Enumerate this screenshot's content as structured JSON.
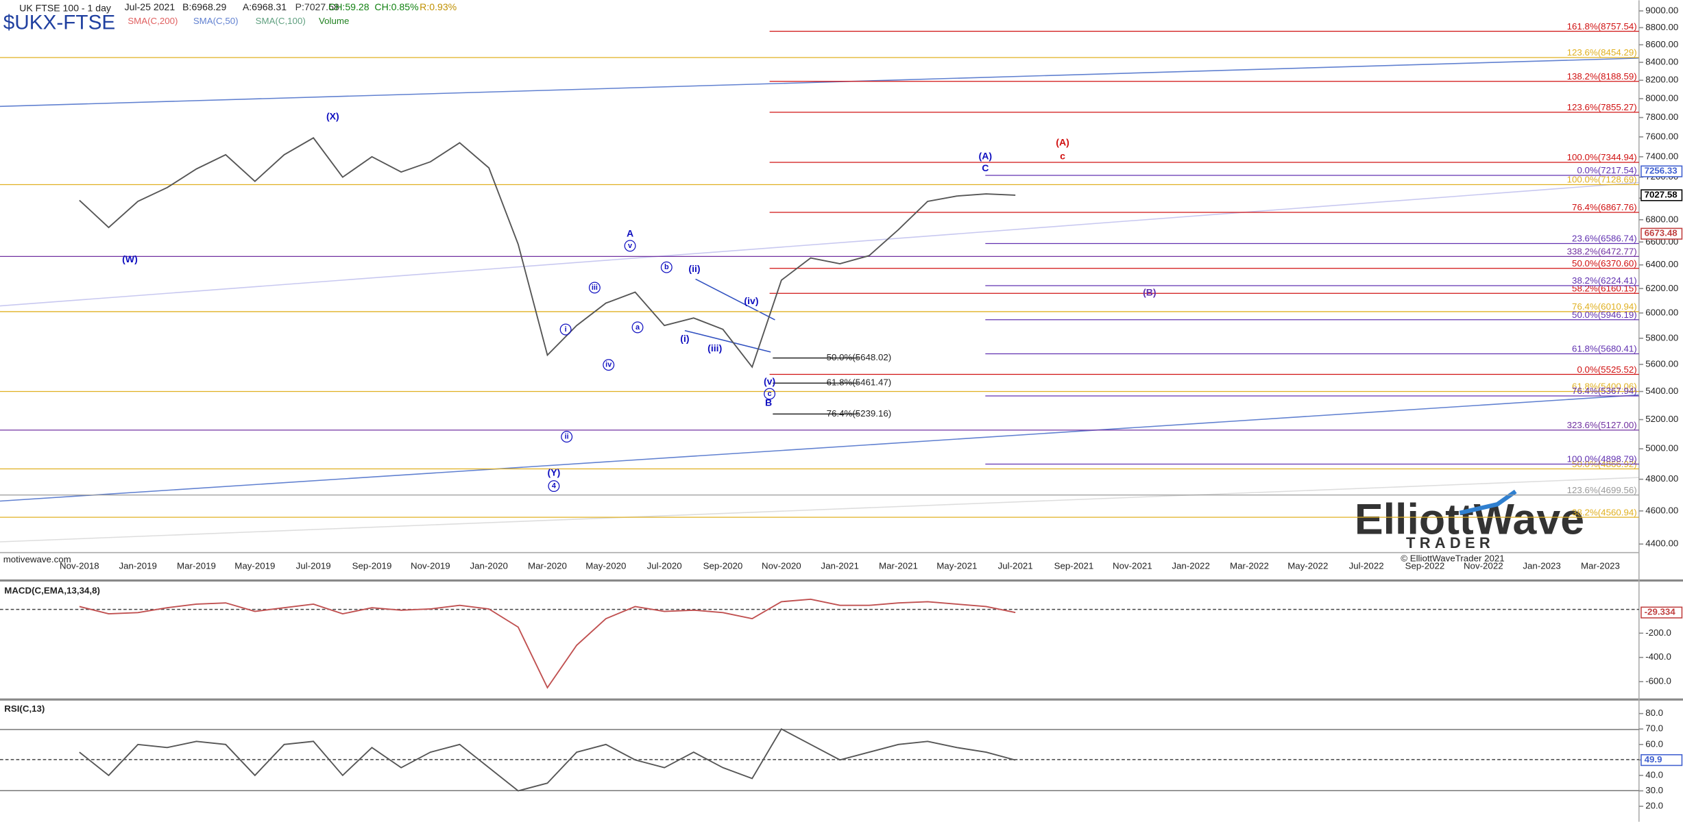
{
  "header": {
    "symbol_name": "UK FTSE 100 - 1 day",
    "date": "Jul-25 2021",
    "bid": "B:6968.29",
    "ask": "A:6968.31",
    "price": "P:7027.58",
    "change": "CH:59.28",
    "change_pct": "CH:0.85%",
    "range": "R:0.93%",
    "ticker": "$UKX-FTSE",
    "studies": [
      "SMA(C,200)",
      "SMA(C,50)",
      "SMA(C,100)",
      "Volume"
    ]
  },
  "footer": {
    "source": "motivewave.com",
    "copyright": "© ElliottWaveTrader 2021",
    "logo_top": "ElliottWave",
    "logo_bottom": "TRADER"
  },
  "chart_data": [
    {
      "type": "line",
      "log_scale": true,
      "categories": [
        "Nov-2018",
        null,
        "Jan-2019",
        null,
        "Mar-2019",
        null,
        "May-2019",
        null,
        "Jul-2019",
        null,
        "Sep-2019",
        null,
        "Nov-2019",
        null,
        "Jan-2020",
        null,
        "Mar-2020",
        null,
        "May-2020",
        null,
        "Jul-2020",
        null,
        "Sep-2020",
        null,
        "Nov-2020",
        null,
        "Jan-2021",
        null,
        "Mar-2021",
        null,
        "May-2021",
        null,
        "Jul-2021",
        null,
        "Sep-2021",
        null,
        "Nov-2021",
        null,
        "Jan-2022",
        null,
        "Mar-2022",
        null,
        "May-2022",
        null,
        "Jul-2022",
        null,
        "Sep-2022",
        null,
        "Nov-2022",
        null,
        "Jan-2023",
        null,
        "Mar-2023"
      ],
      "series": [
        {
          "color": "#555555",
          "values": [
            6980,
            6730,
            6970,
            7100,
            7280,
            7420,
            7160,
            7420,
            7590,
            7200,
            7400,
            7250,
            7350,
            7540,
            7290,
            6580,
            5670,
            5900,
            6080,
            6170,
            5900,
            5960,
            5870,
            5580,
            6270,
            6460,
            6410,
            6480,
            6710,
            6970,
            7020,
            7040,
            7027.58,
            null,
            null,
            null,
            null,
            null,
            null,
            null,
            null,
            null,
            null,
            null,
            null,
            null,
            null,
            null,
            null,
            null,
            null,
            null,
            null
          ]
        }
      ],
      "ylim": [
        4350,
        9130
      ],
      "yticks": [
        {
          "value": 4400,
          "label": "4400.00"
        },
        {
          "value": 4600,
          "label": "4600.00"
        },
        {
          "value": 4800,
          "label": "4800.00"
        },
        {
          "value": 5000,
          "label": "5000.00"
        },
        {
          "value": 5200,
          "label": "5200.00"
        },
        {
          "value": 5400,
          "label": "5400.00"
        },
        {
          "value": 5600,
          "label": "5600.00"
        },
        {
          "value": 5800,
          "label": "5800.00"
        },
        {
          "value": 6000,
          "label": "6000.00"
        },
        {
          "value": 6200,
          "label": "6200.00"
        },
        {
          "value": 6400,
          "label": "6400.00"
        },
        {
          "value": 6600,
          "label": "6600.00"
        },
        {
          "value": 6800,
          "label": "6800.00"
        },
        {
          "value": 7000,
          "label": "7000.00"
        },
        {
          "value": 7200,
          "label": "7200.00"
        },
        {
          "value": 7400,
          "label": "7400.00"
        },
        {
          "value": 7600,
          "label": "7600.00"
        },
        {
          "value": 7800,
          "label": "7800.00"
        },
        {
          "value": 8000,
          "label": "8000.00"
        },
        {
          "value": 8200,
          "label": "8200.00"
        },
        {
          "value": 8400,
          "label": "8400.00"
        },
        {
          "value": 8600,
          "label": "8600.00"
        },
        {
          "value": 8800,
          "label": "8800.00"
        },
        {
          "value": 9000,
          "label": "9000.00"
        }
      ],
      "fib_sets": [
        {
          "color": "#e0b020",
          "levels": [
            {
              "value": 8454.29,
              "label": "123.6%(8454.29)"
            },
            {
              "value": 7128.69,
              "label": "100.0%(7128.69)"
            },
            {
              "value": 6010.94,
              "label": "76.4%(6010.94)"
            },
            {
              "value": 5400.06,
              "label": "61.8%(5400.06)"
            },
            {
              "value": 4866.92,
              "label": "50.0%(4866.92)"
            },
            {
              "value": 4560.94,
              "label": "38.2%(4560.94)"
            }
          ]
        },
        {
          "color": "#7030a0",
          "levels": [
            {
              "value": 6472.77,
              "label": "338.2%(6472.77)"
            },
            {
              "value": 5127.0,
              "label": "323.6%(5127.00)"
            }
          ]
        },
        {
          "color": "#999999",
          "levels": [
            {
              "value": 4699.56,
              "label": "123.6%(4699.56)"
            }
          ]
        },
        {
          "color": "#d01010",
          "levels": [
            {
              "value": 8757.54,
              "label": "161.8%(8757.54)"
            },
            {
              "value": 8188.59,
              "label": "138.2%(8188.59)"
            },
            {
              "value": 7855.27,
              "label": "123.6%(7855.27)"
            },
            {
              "value": 7344.94,
              "label": "100.0%(7344.94)"
            },
            {
              "value": 6867.76,
              "label": "76.4%(6867.76)"
            },
            {
              "value": 6370.6,
              "label": "50.0%(6370.60)"
            },
            {
              "value": 6160.15,
              "label": "58.2%(6160.15)"
            },
            {
              "value": 5525.52,
              "label": "0.0%(5525.52)"
            }
          ]
        },
        {
          "color": "#6030b0",
          "levels": [
            {
              "value": 7217.54,
              "label": "0.0%(7217.54)"
            },
            {
              "value": 6586.74,
              "label": "23.6%(6586.74)"
            },
            {
              "value": 6224.41,
              "label": "38.2%(6224.41)"
            },
            {
              "value": 5946.19,
              "label": "50.0%(5946.19)"
            },
            {
              "value": 5680.41,
              "label": "61.8%(5680.41)"
            },
            {
              "value": 5367.94,
              "label": "76.4%(5367.94)"
            },
            {
              "value": 4898.79,
              "label": "100.0%(4898.79)"
            }
          ]
        },
        {
          "color": "#000000",
          "levels": [
            {
              "value": 5648.02,
              "label": "50.0%(5648.02)"
            },
            {
              "value": 5461.47,
              "label": "61.8%(5461.47)"
            },
            {
              "value": 5239.16,
              "label": "76.4%(5239.16)"
            }
          ]
        }
      ],
      "tags": [
        {
          "value": 7256.33,
          "label": "7256.33",
          "color": "#4060d0"
        },
        {
          "value": 7027.58,
          "label": "7027.58",
          "color": "#000000"
        },
        {
          "value": 6673.48,
          "label": "6673.48",
          "color": "#c04040"
        }
      ],
      "annotations": [
        {
          "text": "(X)",
          "color": "#1010c0"
        },
        {
          "text": "(W)",
          "color": "#1010c0"
        },
        {
          "text": "A",
          "color": "#1010c0"
        },
        {
          "text": "v",
          "color": "#1010c0"
        },
        {
          "text": "(Y)",
          "color": "#1010c0"
        },
        {
          "text": "4",
          "color": "#1010c0"
        },
        {
          "text": "B",
          "color": "#1010c0"
        },
        {
          "text": "c",
          "color": "#1010c0"
        },
        {
          "text": "(v)",
          "color": "#1010c0"
        },
        {
          "text": "(A)",
          "color": "#1010c0"
        },
        {
          "text": "C",
          "color": "#1010c0"
        },
        {
          "text": "(A)",
          "color": "#d01010"
        },
        {
          "text": "c",
          "color": "#d01010"
        },
        {
          "text": "(B)",
          "color": "#6030b0"
        },
        {
          "text": "i",
          "color": "#1010c0"
        },
        {
          "text": "ii",
          "color": "#1010c0"
        },
        {
          "text": "iii",
          "color": "#1010c0"
        },
        {
          "text": "iv",
          "color": "#1010c0"
        },
        {
          "text": "a",
          "color": "#1010c0"
        },
        {
          "text": "b",
          "color": "#1010c0"
        },
        {
          "text": "(i)",
          "color": "#1010c0"
        },
        {
          "text": "(ii)",
          "color": "#1010c0"
        },
        {
          "text": "(iii)",
          "color": "#1010c0"
        },
        {
          "text": "(iv)",
          "color": "#1010c0"
        }
      ]
    },
    {
      "type": "line",
      "title": "MACD(C,EMA,13,34,8)",
      "series": [
        {
          "color": "#c05050",
          "values": [
            20,
            -40,
            -30,
            10,
            40,
            50,
            -20,
            10,
            40,
            -40,
            10,
            -10,
            0,
            30,
            0,
            -150,
            -650,
            -300,
            -80,
            20,
            -20,
            -10,
            -30,
            -80,
            60,
            80,
            30,
            30,
            50,
            60,
            40,
            20,
            -29.334
          ]
        }
      ],
      "ylim": [
        -730,
        200
      ],
      "yticks": [
        {
          "value": -200,
          "label": "-200.0"
        },
        {
          "value": -400,
          "label": "-400.0"
        },
        {
          "value": -600,
          "label": "-600.0"
        }
      ],
      "tags": [
        {
          "value": -29.334,
          "label": "-29.334",
          "color": "#c04040"
        }
      ]
    },
    {
      "type": "line",
      "title": "RSI(C,13)",
      "series": [
        {
          "color": "#555555",
          "values": [
            55,
            40,
            60,
            58,
            62,
            60,
            40,
            60,
            62,
            40,
            58,
            45,
            55,
            60,
            45,
            30,
            35,
            55,
            60,
            50,
            45,
            55,
            45,
            38,
            70,
            60,
            50,
            55,
            60,
            62,
            58,
            55,
            49.9
          ]
        }
      ],
      "ylim": [
        10,
        87
      ],
      "yticks": [
        {
          "value": 20,
          "label": "20.0"
        },
        {
          "value": 30,
          "label": "30.0"
        },
        {
          "value": 40,
          "label": "40.0"
        },
        {
          "value": 50,
          "label": "50.0"
        },
        {
          "value": 60,
          "label": "60.0"
        },
        {
          "value": 70,
          "label": "70.0"
        },
        {
          "value": 80,
          "label": "80.0"
        }
      ],
      "tags": [
        {
          "value": 49.9,
          "label": "49.9",
          "color": "#4060d0"
        }
      ]
    }
  ]
}
